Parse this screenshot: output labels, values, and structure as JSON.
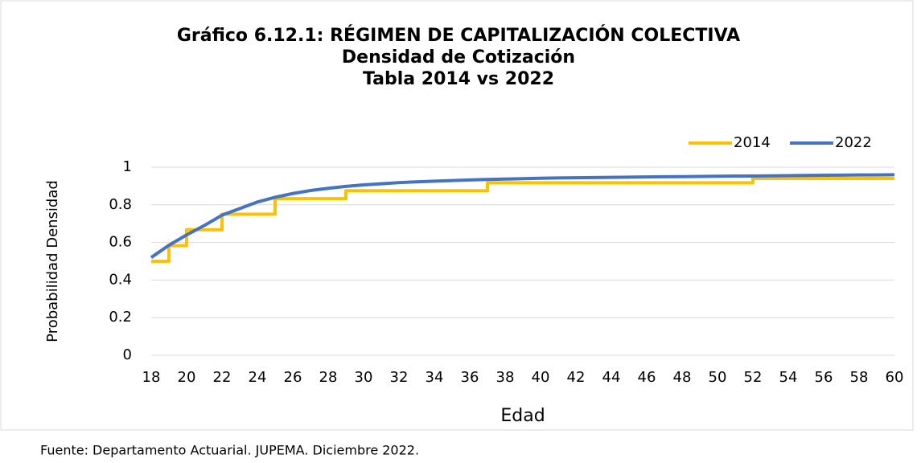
{
  "chart_data": {
    "type": "line",
    "title": [
      "Gráfico 6.12.1: RÉGIMEN DE CAPITALIZACIÓN COLECTIVA",
      "Densidad de Cotización",
      "Tabla 2014 vs 2022"
    ],
    "xlabel": "Edad",
    "ylabel": "Probabilidad Densidad",
    "source": "Fuente: Departamento Actuarial. JUPEMA. Diciembre 2022.",
    "series": [
      {
        "name": "2014",
        "color": "#FFC000",
        "x": [
          18,
          19,
          19,
          20,
          20,
          22,
          22,
          25,
          25,
          29,
          29,
          37,
          37,
          52,
          52,
          60
        ],
        "values": [
          0.5,
          0.5,
          0.583,
          0.583,
          0.667,
          0.667,
          0.75,
          0.75,
          0.833,
          0.833,
          0.875,
          0.875,
          0.917,
          0.917,
          0.94,
          0.94
        ]
      },
      {
        "name": "2022",
        "color": "#4472C4",
        "x": [
          18,
          19,
          20,
          21,
          22,
          23,
          24,
          25,
          26,
          27,
          28,
          29,
          30,
          31,
          32,
          33,
          34,
          35,
          36,
          37,
          38,
          39,
          40,
          41,
          42,
          43,
          44,
          45,
          46,
          47,
          48,
          49,
          50,
          51,
          52,
          53,
          54,
          55,
          56,
          57,
          58,
          59,
          60
        ],
        "values": [
          0.52,
          0.585,
          0.64,
          0.69,
          0.745,
          0.78,
          0.815,
          0.84,
          0.86,
          0.876,
          0.888,
          0.898,
          0.906,
          0.912,
          0.918,
          0.922,
          0.926,
          0.929,
          0.932,
          0.935,
          0.937,
          0.939,
          0.941,
          0.943,
          0.944,
          0.945,
          0.946,
          0.947,
          0.948,
          0.949,
          0.95,
          0.951,
          0.952,
          0.953,
          0.953,
          0.954,
          0.955,
          0.956,
          0.957,
          0.958,
          0.959,
          0.959,
          0.96
        ]
      }
    ],
    "xlim": [
      18,
      60
    ],
    "xticks": [
      18,
      20,
      22,
      24,
      26,
      28,
      30,
      32,
      34,
      36,
      38,
      40,
      42,
      44,
      46,
      48,
      50,
      52,
      54,
      56,
      58,
      60
    ],
    "ylim": [
      0,
      1
    ],
    "yticks": [
      0,
      0.2,
      0.4,
      0.6,
      0.8,
      1
    ],
    "grid": true,
    "legend": "top-right"
  }
}
